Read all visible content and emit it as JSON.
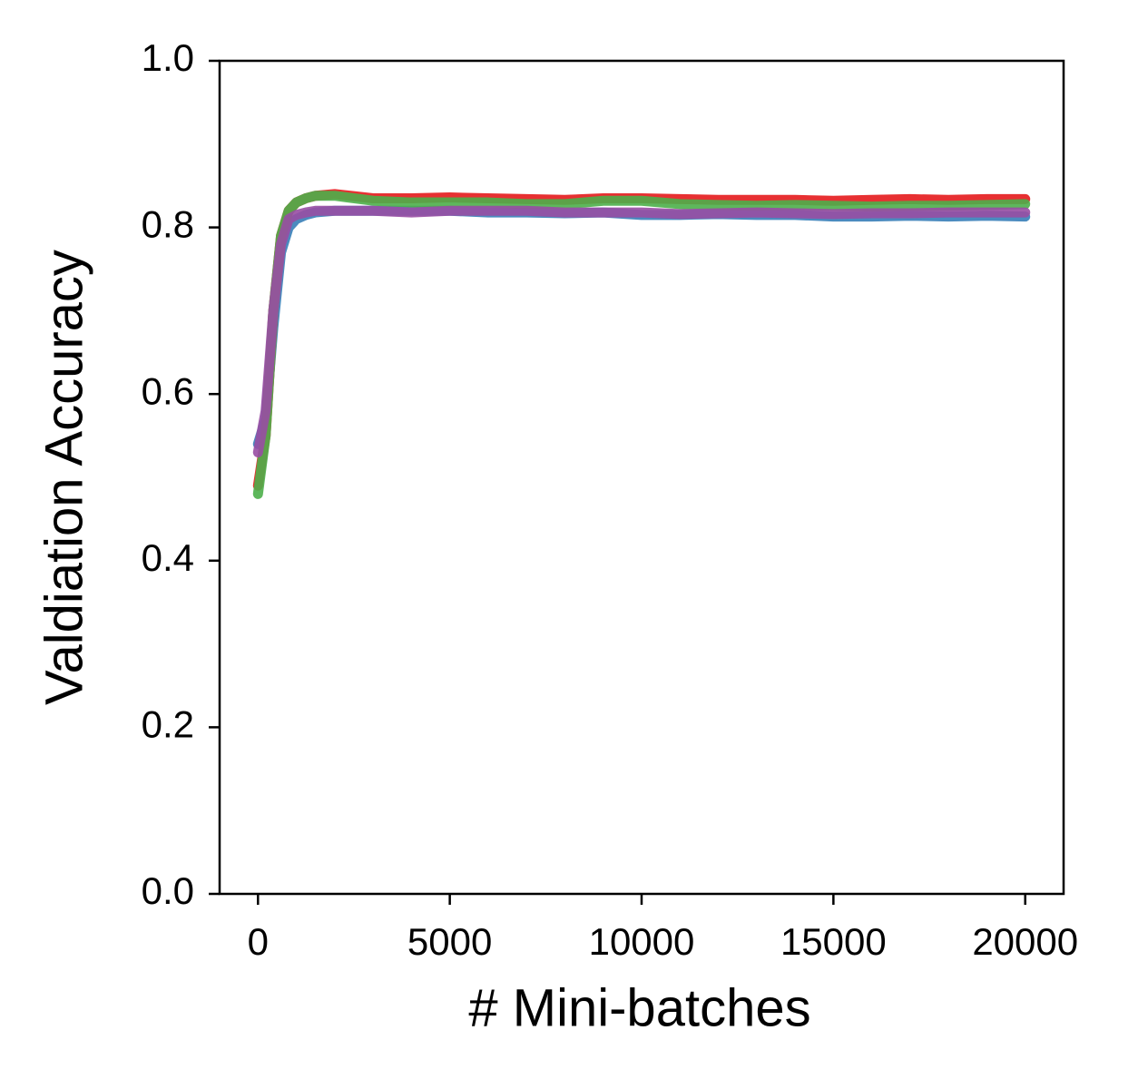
{
  "chart_data": {
    "type": "line",
    "xlabel": "# Mini-batches",
    "ylabel": "Valdiation Accuracy",
    "x": [
      0,
      200,
      400,
      600,
      800,
      1000,
      1250,
      1500,
      2000,
      3000,
      4000,
      5000,
      6000,
      7000,
      8000,
      9000,
      10000,
      11000,
      12000,
      13000,
      14000,
      15000,
      16000,
      17000,
      18000,
      19000,
      20000
    ],
    "series": [
      {
        "color": "#377eb8",
        "values": [
          0.54,
          0.57,
          0.68,
          0.77,
          0.8,
          0.81,
          0.815,
          0.818,
          0.82,
          0.82,
          0.82,
          0.82,
          0.818,
          0.818,
          0.817,
          0.818,
          0.815,
          0.815,
          0.816,
          0.815,
          0.815,
          0.813,
          0.813,
          0.814,
          0.813,
          0.814,
          0.813
        ]
      },
      {
        "color": "#e41a1c",
        "values": [
          0.49,
          0.55,
          0.7,
          0.79,
          0.82,
          0.83,
          0.835,
          0.838,
          0.84,
          0.835,
          0.835,
          0.836,
          0.835,
          0.834,
          0.833,
          0.835,
          0.835,
          0.834,
          0.833,
          0.833,
          0.833,
          0.832,
          0.833,
          0.834,
          0.833,
          0.834,
          0.834
        ]
      },
      {
        "color": "#4daf4a",
        "values": [
          0.48,
          0.55,
          0.7,
          0.79,
          0.82,
          0.83,
          0.835,
          0.838,
          0.838,
          0.832,
          0.83,
          0.83,
          0.83,
          0.828,
          0.828,
          0.832,
          0.832,
          0.828,
          0.827,
          0.826,
          0.827,
          0.826,
          0.825,
          0.826,
          0.826,
          0.827,
          0.828
        ]
      },
      {
        "color": "#984ea3",
        "values": [
          0.53,
          0.58,
          0.7,
          0.78,
          0.81,
          0.815,
          0.818,
          0.82,
          0.82,
          0.82,
          0.818,
          0.82,
          0.82,
          0.82,
          0.818,
          0.818,
          0.818,
          0.816,
          0.817,
          0.818,
          0.817,
          0.816,
          0.817,
          0.817,
          0.818,
          0.818,
          0.818
        ]
      }
    ],
    "xlim": [
      -1000,
      21000
    ],
    "ylim": [
      0,
      1
    ],
    "xticks": [
      0,
      5000,
      10000,
      15000,
      20000
    ],
    "yticks": [
      {
        "value": 0,
        "label": "0.0"
      },
      0.2,
      0.4,
      0.6,
      0.8,
      {
        "value": 1,
        "label": "1.0"
      }
    ],
    "grid": false
  }
}
